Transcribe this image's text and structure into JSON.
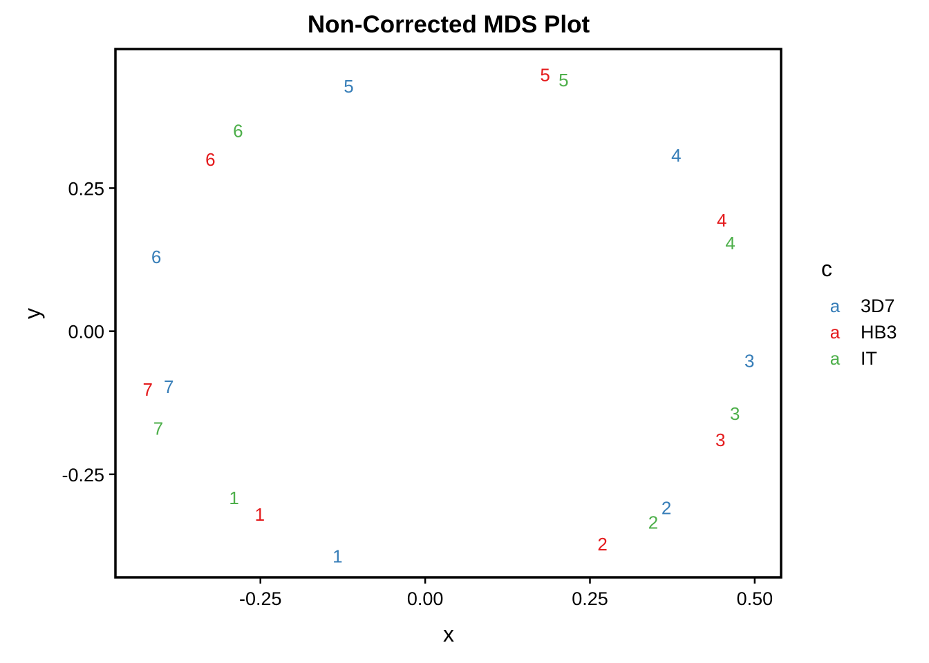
{
  "chart_data": {
    "type": "scatter",
    "title": "Non-Corrected MDS Plot",
    "xlabel": "x",
    "ylabel": "y",
    "xlim": [
      -0.47,
      0.54
    ],
    "ylim": [
      -0.43,
      0.493
    ],
    "x_ticks": [
      -0.25,
      0.0,
      0.25,
      0.5
    ],
    "x_tick_labels": [
      "-0.25",
      "0.00",
      "0.25",
      "0.50"
    ],
    "y_ticks": [
      -0.25,
      0.0,
      0.25
    ],
    "y_tick_labels": [
      "-0.25",
      "0.00",
      "0.25"
    ],
    "grid": false,
    "legend": {
      "title": "c",
      "position": "right",
      "key_glyph": "a"
    },
    "series": [
      {
        "name": "3D7",
        "color": "#377EB8",
        "points": [
          {
            "label": "1",
            "x": -0.133,
            "y": -0.393
          },
          {
            "label": "2",
            "x": 0.366,
            "y": -0.309
          },
          {
            "label": "3",
            "x": 0.492,
            "y": -0.052
          },
          {
            "label": "4",
            "x": 0.381,
            "y": 0.307
          },
          {
            "label": "5",
            "x": -0.116,
            "y": 0.428
          },
          {
            "label": "6",
            "x": -0.408,
            "y": 0.13
          },
          {
            "label": "7",
            "x": -0.389,
            "y": -0.097
          }
        ]
      },
      {
        "name": "HB3",
        "color": "#E41A1C",
        "points": [
          {
            "label": "1",
            "x": -0.251,
            "y": -0.32
          },
          {
            "label": "2",
            "x": 0.269,
            "y": -0.372
          },
          {
            "label": "3",
            "x": 0.448,
            "y": -0.19
          },
          {
            "label": "4",
            "x": 0.45,
            "y": 0.194
          },
          {
            "label": "5",
            "x": 0.182,
            "y": 0.448
          },
          {
            "label": "6",
            "x": -0.326,
            "y": 0.3
          },
          {
            "label": "7",
            "x": -0.421,
            "y": -0.102
          }
        ]
      },
      {
        "name": "IT",
        "color": "#4DAF4A",
        "points": [
          {
            "label": "1",
            "x": -0.29,
            "y": -0.291
          },
          {
            "label": "2",
            "x": 0.346,
            "y": -0.334
          },
          {
            "label": "3",
            "x": 0.47,
            "y": -0.144
          },
          {
            "label": "4",
            "x": 0.463,
            "y": 0.154
          },
          {
            "label": "5",
            "x": 0.21,
            "y": 0.439
          },
          {
            "label": "6",
            "x": -0.284,
            "y": 0.35
          },
          {
            "label": "7",
            "x": -0.405,
            "y": -0.17
          }
        ]
      }
    ]
  }
}
